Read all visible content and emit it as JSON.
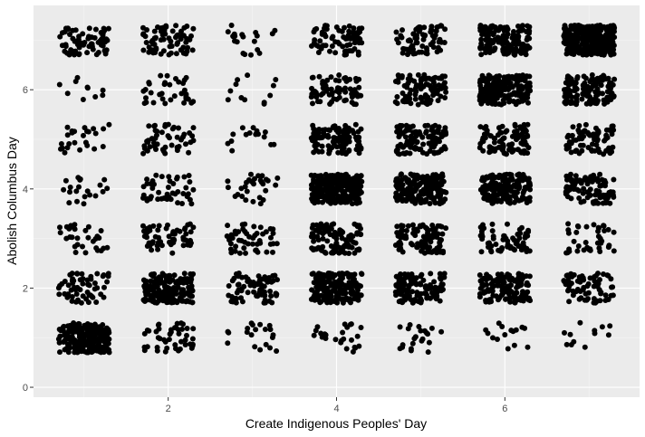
{
  "chart_data": {
    "type": "scatter",
    "title": "",
    "xlabel": "Create Indigenous Peoples' Day",
    "ylabel": "Abolish Columbus Day",
    "xlim": [
      0.4,
      7.6
    ],
    "ylim": [
      -0.2,
      7.7
    ],
    "x_ticks": [
      2,
      4,
      6
    ],
    "y_ticks": [
      0,
      2,
      4,
      6
    ],
    "x_tick_labels": [
      "2",
      "4",
      "6"
    ],
    "y_tick_labels": [
      "0",
      "2",
      "4",
      "6"
    ],
    "grid": true,
    "legend": "none",
    "jitter": 0.3,
    "colors": {
      "panel_background": "#ebebeb",
      "grid_major": "#ffffff",
      "grid_minor": "#f5f5f5",
      "point": "#000000"
    },
    "counts": [
      [
        220,
        45,
        20,
        25,
        22,
        15,
        12
      ],
      [
        60,
        170,
        70,
        180,
        120,
        130,
        70
      ],
      [
        30,
        60,
        50,
        110,
        100,
        60,
        40
      ],
      [
        20,
        45,
        30,
        260,
        190,
        170,
        100
      ],
      [
        25,
        50,
        15,
        110,
        120,
        100,
        75
      ],
      [
        10,
        35,
        12,
        75,
        95,
        190,
        130
      ],
      [
        70,
        70,
        20,
        75,
        70,
        150,
        320
      ]
    ]
  }
}
